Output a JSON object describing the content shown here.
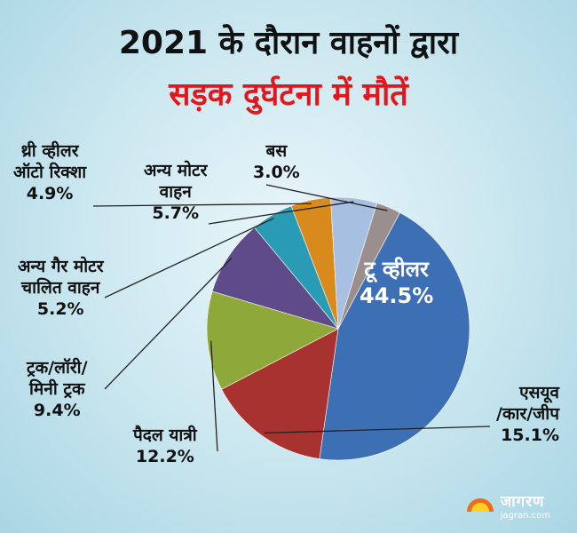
{
  "title_line1": "2021 के दौरान वाहनों द्वारा",
  "title_line2": "सड़क दुर्घटना में मौतें",
  "brand": {
    "name": "जागरण",
    "url": "jagran.com"
  },
  "colors": {
    "two_wheeler": "#3d6fb5",
    "suv": "#a8322f",
    "pedestrian": "#8fa83a",
    "truck": "#5f4a8a",
    "non_motor": "#2a9bb5",
    "auto": "#d88a1c",
    "other_motor": "#a7bfe0",
    "bus": "#9a8f8c"
  },
  "chart_data": {
    "type": "pie",
    "title": "2021 के दौरान वाहनों द्वारा सड़क दुर्घटना में मौतें",
    "slices": [
      {
        "key": "two_wheeler",
        "line1": "टू व्हीलर",
        "line2": "",
        "value": "44.5%"
      },
      {
        "key": "suv",
        "line1": "एसयूव",
        "line2": "/कार/जीप",
        "value": "15.1%"
      },
      {
        "key": "pedestrian",
        "line1": "पैदल यात्री",
        "line2": "",
        "value": "12.2%"
      },
      {
        "key": "truck",
        "line1": "ट्रक/लॉरी/",
        "line2": "मिनी ट्रक",
        "value": "9.4%"
      },
      {
        "key": "non_motor",
        "line1": "अन्य गैर मोटर",
        "line2": "चालित वाहन",
        "value": "5.2%"
      },
      {
        "key": "auto",
        "line1": "थ्री व्हीलर",
        "line2": "ऑटो रिक्शा",
        "value": "4.9%"
      },
      {
        "key": "other_motor",
        "line1": "अन्य मोटर",
        "line2": "वाहन",
        "value": "5.7%"
      },
      {
        "key": "bus",
        "line1": "बस",
        "line2": "",
        "value": "3.0%"
      }
    ]
  }
}
